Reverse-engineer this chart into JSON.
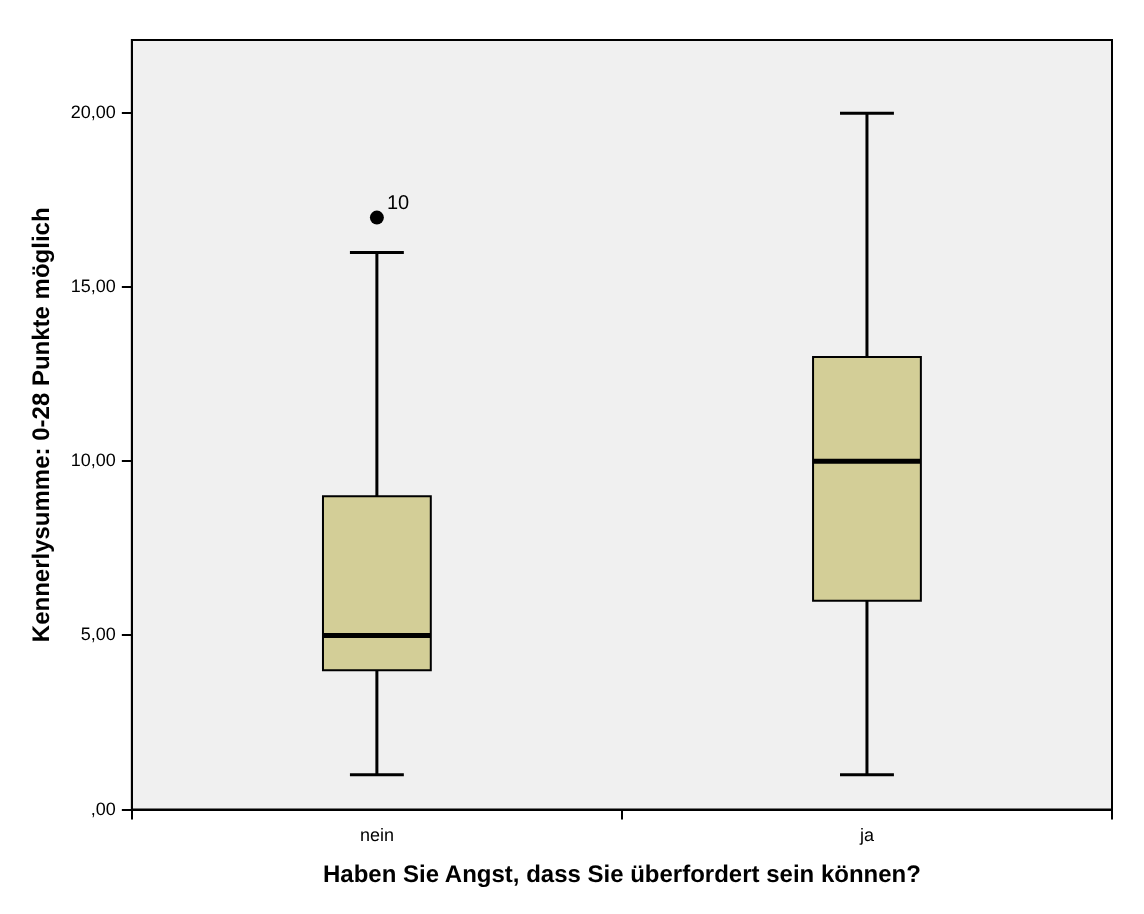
{
  "chart_data": {
    "type": "box",
    "xlabel": "Haben Sie Angst, dass Sie überfordert sein können?",
    "ylabel": "Kennerlysumme: 0-28 Punkte möglich",
    "categories": [
      "nein",
      "ja"
    ],
    "color": "#d3ce97",
    "boxes": [
      {
        "low": 1,
        "q1": 4,
        "median": 5,
        "q3": 9,
        "high": 16,
        "outliers": [
          17
        ]
      },
      {
        "low": 1,
        "q1": 6,
        "median": 10,
        "q3": 13,
        "high": 20
      }
    ],
    "ylim": [
      0,
      22.1
    ],
    "yticks": [
      {
        "value": 0,
        "label": ",00"
      },
      {
        "value": 5,
        "label": "5,00"
      },
      {
        "value": 10,
        "label": "10,00"
      },
      {
        "value": 15,
        "label": "15,00"
      },
      {
        "value": 20,
        "label": "20,00"
      }
    ],
    "annotations": [
      "10"
    ]
  }
}
